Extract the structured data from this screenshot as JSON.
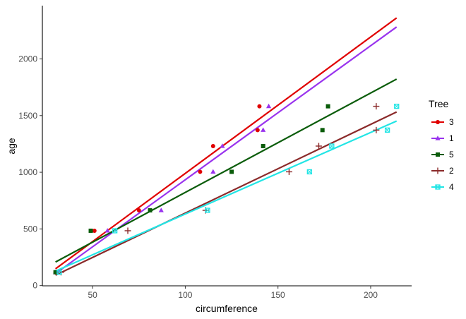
{
  "chart_data": {
    "type": "scatter",
    "xlabel": "circumference",
    "ylabel": "age",
    "xlim": [
      22.9,
      222.1
    ],
    "ylim": [
      -2,
      2470
    ],
    "xticks": [
      50,
      100,
      150,
      200
    ],
    "yticks": [
      0,
      500,
      1000,
      1500,
      2000
    ],
    "x_tick_labels": [
      "50",
      "100",
      "150",
      "200"
    ],
    "y_tick_labels": [
      "0",
      "500",
      "1000",
      "1500",
      "2000"
    ],
    "grid": false,
    "legend": {
      "title": "Tree",
      "placement": "right"
    },
    "series": [
      {
        "name": "3",
        "color": "#e00000",
        "marker": "circle",
        "points": [
          [
            30,
            118
          ],
          [
            51,
            484
          ],
          [
            75,
            664
          ],
          [
            108,
            1004
          ],
          [
            115,
            1231
          ],
          [
            139,
            1372
          ],
          [
            140,
            1582
          ]
        ],
        "fit": {
          "x": [
            30,
            214
          ],
          "y": [
            148,
            2362
          ]
        }
      },
      {
        "name": "1",
        "color": "#9933ee",
        "marker": "triangle",
        "points": [
          [
            30,
            118
          ],
          [
            58,
            484
          ],
          [
            87,
            664
          ],
          [
            115,
            1004
          ],
          [
            120,
            1231
          ],
          [
            142,
            1372
          ],
          [
            145,
            1582
          ]
        ],
        "fit": {
          "x": [
            30,
            214
          ],
          "y": [
            106,
            2282
          ]
        }
      },
      {
        "name": "5",
        "color": "#0a5c0a",
        "marker": "square",
        "points": [
          [
            30,
            118
          ],
          [
            49,
            484
          ],
          [
            81,
            664
          ],
          [
            125,
            1004
          ],
          [
            142,
            1231
          ],
          [
            174,
            1372
          ],
          [
            177,
            1582
          ]
        ],
        "fit": {
          "x": [
            30,
            214
          ],
          "y": [
            208,
            1822
          ]
        }
      },
      {
        "name": "2",
        "color": "#8b2a2a",
        "marker": "plus",
        "points": [
          [
            33,
            118
          ],
          [
            69,
            484
          ],
          [
            111,
            664
          ],
          [
            156,
            1004
          ],
          [
            172,
            1231
          ],
          [
            203,
            1372
          ],
          [
            203,
            1582
          ]
        ],
        "fit": {
          "x": [
            30,
            214
          ],
          "y": [
            92,
            1532
          ]
        }
      },
      {
        "name": "4",
        "color": "#22e5e5",
        "marker": "boxed-x",
        "points": [
          [
            32,
            118
          ],
          [
            62,
            484
          ],
          [
            112,
            664
          ],
          [
            167,
            1004
          ],
          [
            179,
            1231
          ],
          [
            209,
            1372
          ],
          [
            214,
            1582
          ]
        ],
        "fit": {
          "x": [
            30,
            214
          ],
          "y": [
            128,
            1452
          ]
        }
      }
    ]
  }
}
